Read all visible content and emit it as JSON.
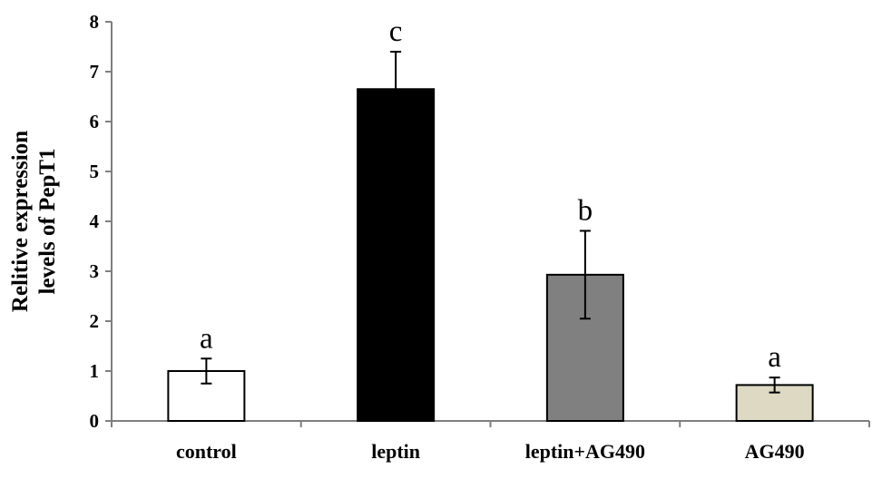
{
  "chart_data": {
    "type": "bar",
    "title": "",
    "xlabel": "",
    "ylabel_lines": [
      "Relitive expression",
      "levels of PepT1"
    ],
    "categories": [
      "control",
      "leptin",
      "leptin+AG490",
      "AG490"
    ],
    "values": [
      1.0,
      6.65,
      2.93,
      0.72
    ],
    "errors": [
      0.25,
      0.75,
      0.88,
      0.15
    ],
    "significance": [
      "a",
      "c",
      "b",
      "a"
    ],
    "bar_colors": [
      "#ffffff",
      "#000000",
      "#808080",
      "#ddd9c3"
    ],
    "ylim": [
      0,
      8
    ],
    "yticks": [
      0,
      1,
      2,
      3,
      4,
      5,
      6,
      7,
      8
    ],
    "grid": false,
    "legend": "none"
  }
}
